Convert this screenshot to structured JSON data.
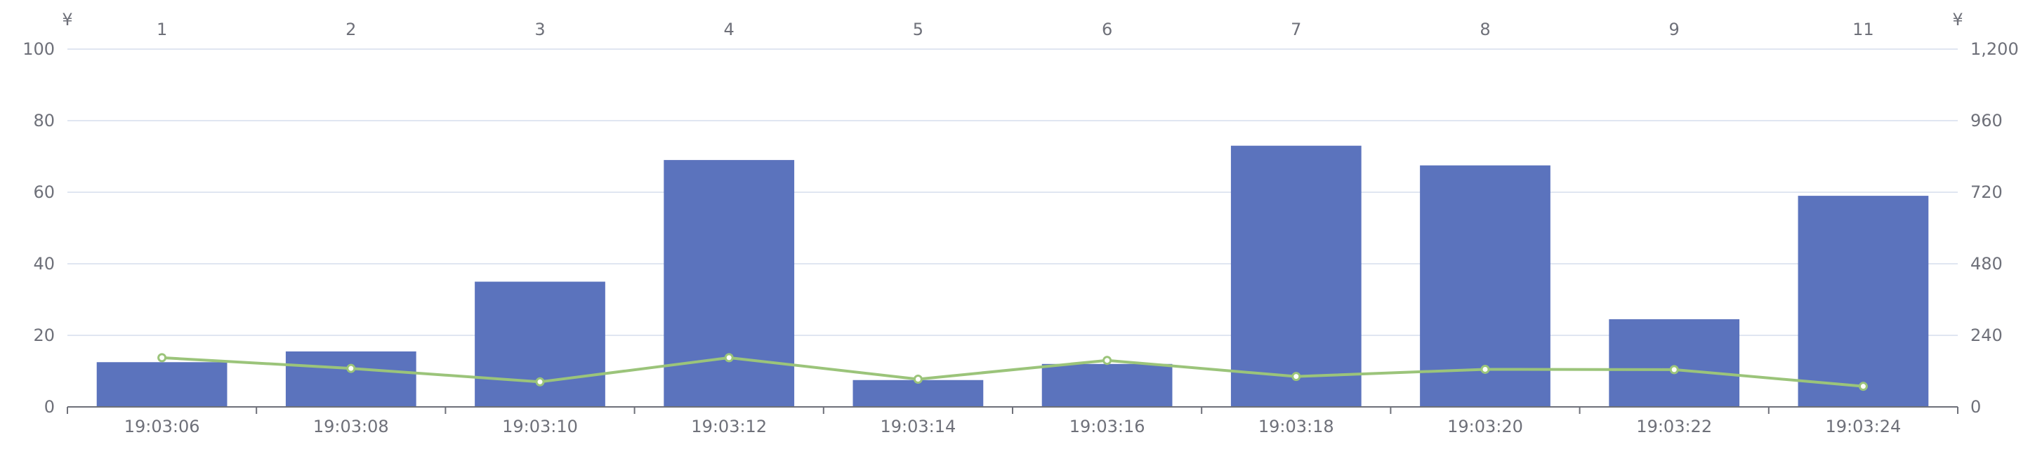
{
  "chart_data": {
    "type": "bar",
    "title": "",
    "categories_bottom": [
      "19:03:06",
      "19:03:08",
      "19:03:10",
      "19:03:12",
      "19:03:14",
      "19:03:16",
      "19:03:18",
      "19:03:20",
      "19:03:22",
      "19:03:24"
    ],
    "categories_top": [
      "1",
      "2",
      "3",
      "4",
      "5",
      "6",
      "7",
      "8",
      "9",
      "11"
    ],
    "left_axis": {
      "unit": "¥",
      "range": [
        0,
        100
      ],
      "ticks": [
        0,
        20,
        40,
        60,
        80,
        100
      ],
      "tick_labels": [
        "0",
        "20",
        "40",
        "60",
        "80",
        "100"
      ]
    },
    "right_axis": {
      "unit": "¥",
      "range": [
        0,
        1200
      ],
      "ticks": [
        0,
        240,
        480,
        720,
        960,
        1200
      ],
      "tick_labels": [
        "0",
        "240",
        "480",
        "720",
        "960",
        "1,200"
      ]
    },
    "series": [
      {
        "type": "bar",
        "axis": "left",
        "color": "#5b73bd",
        "values": [
          12.5,
          15.5,
          35,
          69,
          7.5,
          12,
          73,
          67.5,
          24.5,
          59
        ]
      },
      {
        "type": "line",
        "axis": "right",
        "color": "#9bc47a",
        "values": [
          165,
          129,
          84,
          165,
          93,
          156,
          102,
          126,
          125,
          69
        ]
      }
    ],
    "grid": true
  }
}
